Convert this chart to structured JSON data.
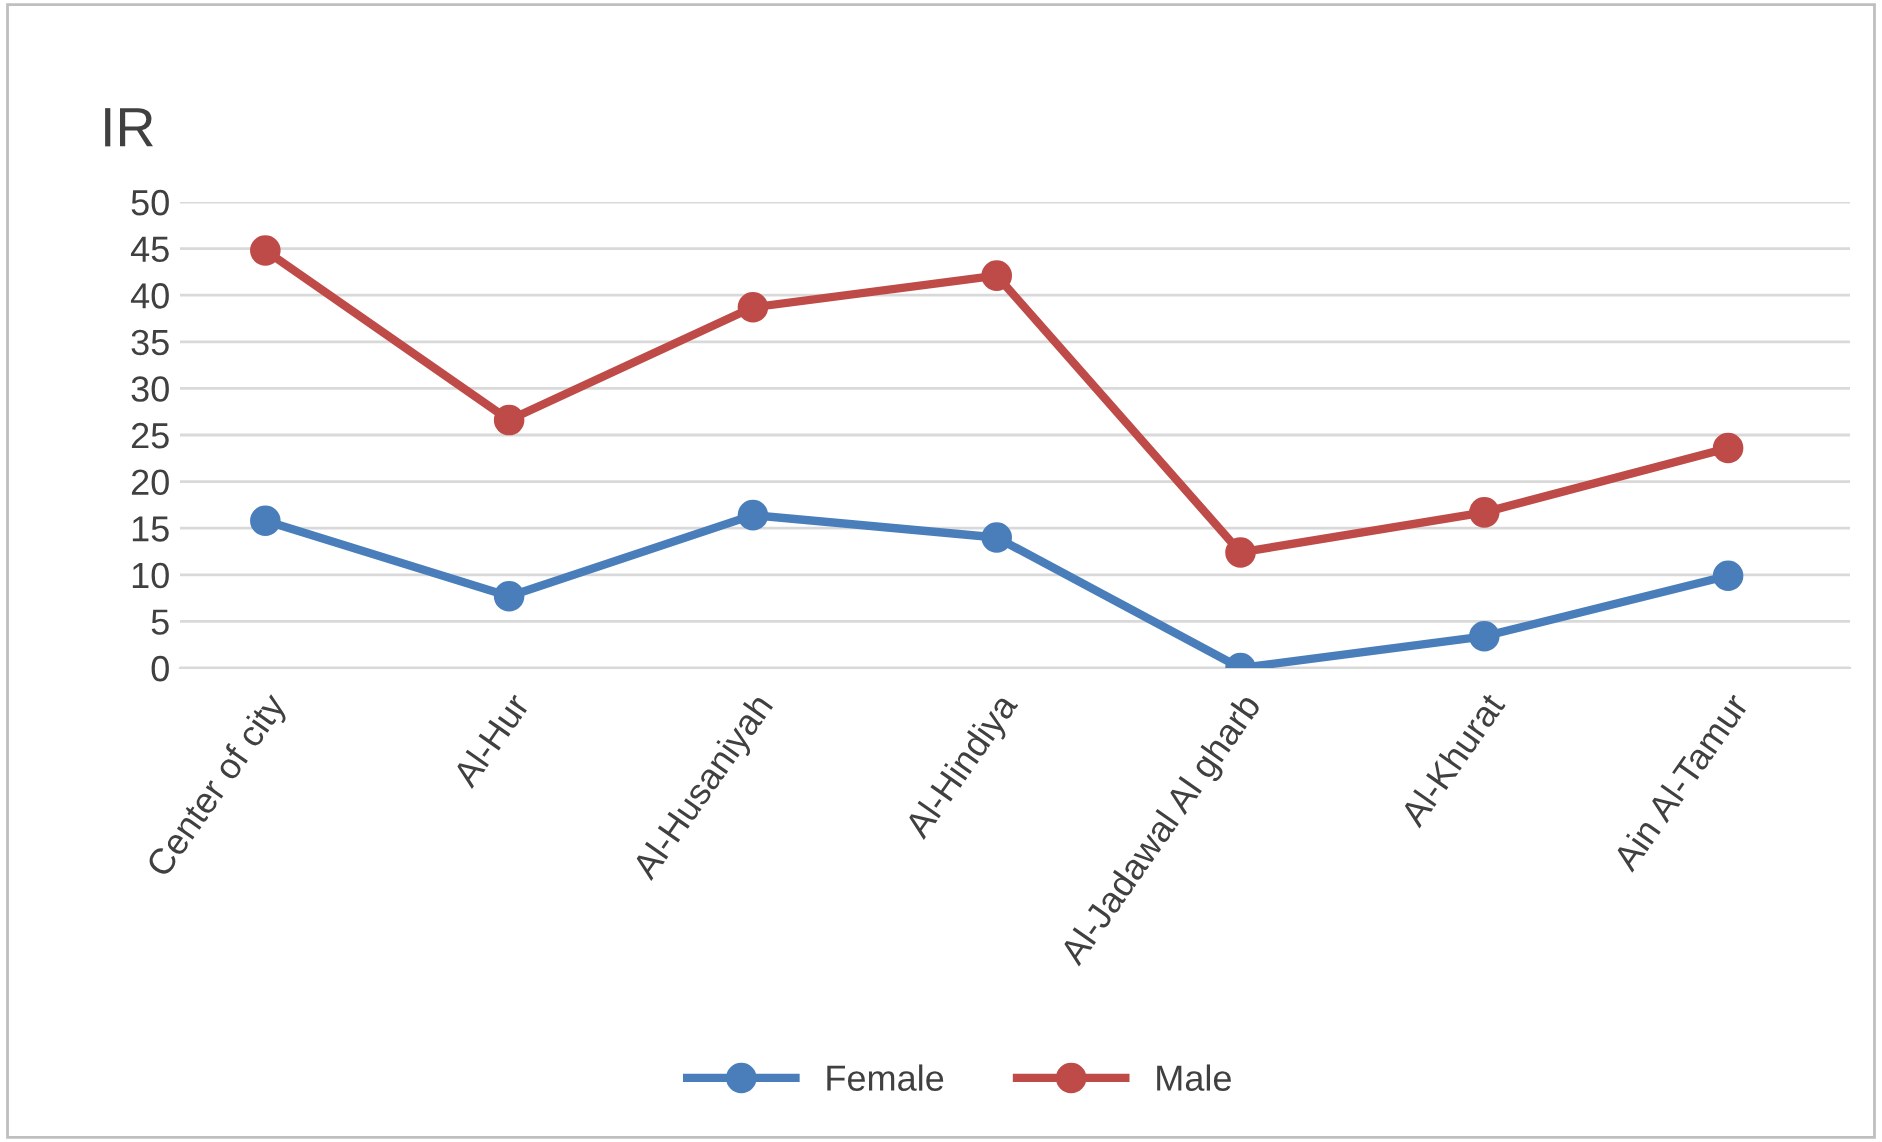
{
  "chart_data": {
    "type": "line",
    "ylabel": "IR",
    "categories": [
      "Center of city",
      "Al-Hur",
      "Al-Husaniyah",
      "Al-Hindiya",
      "Al-Jadawal Al gharb",
      "Al-Khurat",
      "Ain Al-Tamur"
    ],
    "series": [
      {
        "name": "Female",
        "color": "#4a7ebb",
        "values": [
          15.8,
          7.7,
          16.4,
          14.0,
          0,
          3.4,
          9.9
        ]
      },
      {
        "name": "Male",
        "color": "#be4b48",
        "values": [
          44.8,
          26.6,
          38.7,
          42.1,
          12.4,
          16.7,
          23.6
        ]
      }
    ],
    "ylim": [
      0,
      50
    ],
    "yticks": [
      0,
      5,
      10,
      15,
      20,
      25,
      30,
      35,
      40,
      45,
      50
    ],
    "grid": "y",
    "legend": "bottom",
    "marker": "circle",
    "line_style": "solid"
  }
}
